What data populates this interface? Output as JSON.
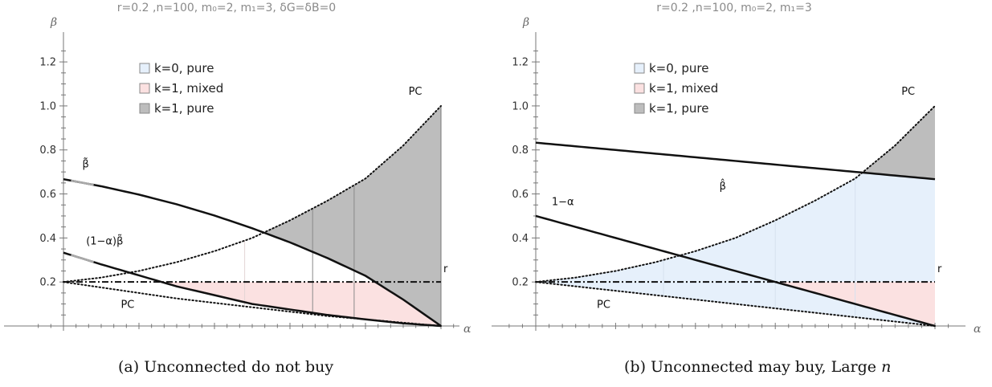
{
  "chart_data": [
    {
      "type": "area",
      "title": "r=0.2 ,n=100, m₀=2, m₁=3, δG=δB=0",
      "xlabel": "α",
      "ylabel": "β",
      "xlim": [
        0,
        1
      ],
      "ylim": [
        0,
        1.25
      ],
      "yticks": [
        "0.2",
        "0.4",
        "0.6",
        "0.8",
        "1.0",
        "1.2"
      ],
      "legend": {
        "placement": "top-left",
        "entries": [
          "k=0, pure",
          "k=1, mixed",
          "k=1, pure"
        ],
        "colors": [
          "#e6f0fb",
          "#fbe1e1",
          "#bdbdbd"
        ]
      },
      "r_label": "r",
      "r_value": 0.2,
      "curve_labels": {
        "upper": "PC",
        "lower": "PC",
        "beta_tilde": "β̃",
        "one_minus_alpha_beta_tilde": "(1−α)β̃"
      },
      "series": [
        {
          "name": "PC upper",
          "x": [
            0,
            0.1,
            0.2,
            0.3,
            0.4,
            0.5,
            0.6,
            0.7,
            0.8,
            0.9,
            1.0
          ],
          "y": [
            0.2,
            0.22,
            0.25,
            0.29,
            0.34,
            0.4,
            0.48,
            0.57,
            0.67,
            0.82,
            1.0
          ]
        },
        {
          "name": "PC lower",
          "x": [
            0,
            0.1,
            0.2,
            0.3,
            0.4,
            0.5,
            0.6,
            0.7,
            0.8,
            0.9,
            1.0
          ],
          "y": [
            0.2,
            0.175,
            0.15,
            0.125,
            0.105,
            0.085,
            0.065,
            0.045,
            0.03,
            0.015,
            0
          ]
        },
        {
          "name": "β̃",
          "x": [
            0,
            0.1,
            0.2,
            0.3,
            0.4,
            0.5,
            0.6,
            0.7,
            0.8,
            0.9,
            1.0
          ],
          "y": [
            0.667,
            0.635,
            0.597,
            0.553,
            0.502,
            0.444,
            0.38,
            0.308,
            0.228,
            0.12,
            0
          ]
        },
        {
          "name": "(1−α)β̃",
          "x": [
            0,
            0.1,
            0.2,
            0.3,
            0.4,
            0.5,
            0.6,
            0.7,
            0.8,
            0.9,
            1.0
          ],
          "y": [
            0.333,
            0.28,
            0.23,
            0.18,
            0.14,
            0.1,
            0.075,
            0.05,
            0.03,
            0.012,
            0
          ]
        }
      ]
    },
    {
      "type": "area",
      "title": "r=0.2 ,n=100, m₀=2, m₁=3",
      "xlabel": "α",
      "ylabel": "β",
      "xlim": [
        0,
        1
      ],
      "ylim": [
        0,
        1.25
      ],
      "yticks": [
        "0.2",
        "0.4",
        "0.6",
        "0.8",
        "1.0",
        "1.2"
      ],
      "legend": {
        "placement": "top-left",
        "entries": [
          "k=0, pure",
          "k=1, mixed",
          "k=1, pure"
        ],
        "colors": [
          "#e6f0fb",
          "#fbe1e1",
          "#bdbdbd"
        ]
      },
      "r_label": "r",
      "r_value": 0.2,
      "curve_labels": {
        "upper": "PC",
        "lower": "PC",
        "beta_hat": "β̂",
        "one_minus_alpha": "1−α"
      },
      "series": [
        {
          "name": "PC upper",
          "x": [
            0,
            0.1,
            0.2,
            0.3,
            0.4,
            0.5,
            0.6,
            0.7,
            0.8,
            0.9,
            1.0
          ],
          "y": [
            0.2,
            0.22,
            0.25,
            0.29,
            0.34,
            0.4,
            0.48,
            0.57,
            0.67,
            0.82,
            1.0
          ]
        },
        {
          "name": "PC lower",
          "x": [
            0,
            0.1,
            0.2,
            0.3,
            0.4,
            0.5,
            0.6,
            0.7,
            0.8,
            0.9,
            1.0
          ],
          "y": [
            0.2,
            0.18,
            0.16,
            0.14,
            0.12,
            0.1,
            0.08,
            0.06,
            0.04,
            0.02,
            0
          ]
        },
        {
          "name": "β̂",
          "x": [
            0,
            1.0
          ],
          "y": [
            0.833,
            0.667
          ]
        },
        {
          "name": "1−α",
          "x": [
            0,
            1.0
          ],
          "y": [
            0.5,
            0.0
          ]
        }
      ]
    }
  ],
  "captions": {
    "a": "(a)  Unconnected do not buy",
    "b_main": "(b)  Unconnected may buy, Large ",
    "b_ital": "n"
  }
}
